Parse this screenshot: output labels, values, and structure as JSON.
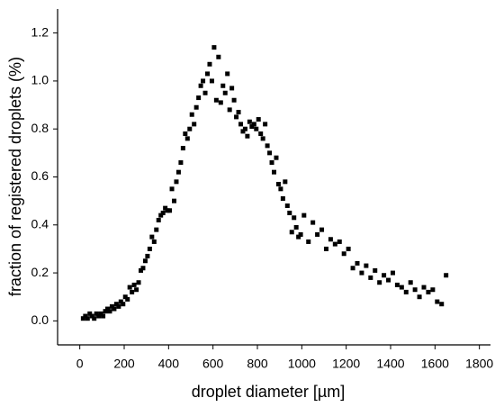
{
  "chart_data": {
    "type": "scatter",
    "xlabel": "droplet diameter [µm]",
    "ylabel": "fraction of registered droplets (%)",
    "color": "#000000",
    "x": [
      15,
      25,
      35,
      45,
      55,
      65,
      75,
      85,
      95,
      105,
      115,
      125,
      135,
      145,
      155,
      165,
      175,
      185,
      195,
      205,
      215,
      225,
      235,
      245,
      255,
      265,
      275,
      285,
      295,
      305,
      315,
      325,
      335,
      345,
      355,
      365,
      375,
      385,
      395,
      405,
      415,
      425,
      435,
      445,
      455,
      465,
      475,
      485,
      495,
      505,
      515,
      525,
      535,
      545,
      555,
      565,
      575,
      585,
      595,
      605,
      615,
      625,
      635,
      645,
      655,
      665,
      675,
      685,
      695,
      705,
      715,
      725,
      735,
      745,
      755,
      765,
      775,
      785,
      795,
      805,
      815,
      825,
      835,
      845,
      855,
      865,
      875,
      885,
      895,
      905,
      915,
      925,
      935,
      945,
      955,
      965,
      975,
      985,
      995,
      1010,
      1030,
      1050,
      1070,
      1090,
      1110,
      1130,
      1150,
      1170,
      1190,
      1210,
      1230,
      1250,
      1270,
      1290,
      1310,
      1330,
      1350,
      1370,
      1390,
      1410,
      1430,
      1450,
      1470,
      1490,
      1510,
      1530,
      1550,
      1570,
      1590,
      1610,
      1630,
      1650
    ],
    "values": [
      0.01,
      0.02,
      0.01,
      0.03,
      0.02,
      0.01,
      0.03,
      0.02,
      0.03,
      0.02,
      0.04,
      0.05,
      0.04,
      0.06,
      0.05,
      0.07,
      0.06,
      0.08,
      0.07,
      0.1,
      0.09,
      0.14,
      0.12,
      0.15,
      0.13,
      0.16,
      0.21,
      0.22,
      0.25,
      0.27,
      0.3,
      0.35,
      0.33,
      0.38,
      0.42,
      0.44,
      0.45,
      0.47,
      0.46,
      0.46,
      0.55,
      0.5,
      0.58,
      0.62,
      0.66,
      0.72,
      0.78,
      0.76,
      0.8,
      0.86,
      0.82,
      0.89,
      0.93,
      0.98,
      1.0,
      0.95,
      1.03,
      1.07,
      1.0,
      1.14,
      0.92,
      1.1,
      0.91,
      0.98,
      0.95,
      1.03,
      0.88,
      0.97,
      0.92,
      0.85,
      0.87,
      0.82,
      0.79,
      0.8,
      0.77,
      0.83,
      0.81,
      0.82,
      0.8,
      0.84,
      0.78,
      0.76,
      0.82,
      0.73,
      0.7,
      0.66,
      0.62,
      0.68,
      0.57,
      0.55,
      0.51,
      0.58,
      0.48,
      0.45,
      0.37,
      0.43,
      0.39,
      0.35,
      0.36,
      0.44,
      0.33,
      0.41,
      0.36,
      0.38,
      0.3,
      0.34,
      0.32,
      0.33,
      0.28,
      0.3,
      0.22,
      0.24,
      0.2,
      0.23,
      0.18,
      0.21,
      0.16,
      0.19,
      0.17,
      0.2,
      0.15,
      0.14,
      0.12,
      0.16,
      0.13,
      0.1,
      0.14,
      0.12,
      0.13,
      0.08,
      0.07,
      0.19
    ],
    "xlim": [
      -100,
      1850
    ],
    "xticks": [
      0,
      200,
      400,
      600,
      800,
      1000,
      1200,
      1400,
      1600,
      1800
    ],
    "ylim": [
      -0.1,
      1.3
    ],
    "yticks": [
      {
        "value": 0,
        "label": "0.0"
      },
      {
        "value": 0.2,
        "label": "0.2"
      },
      {
        "value": 0.4,
        "label": "0.4"
      },
      {
        "value": 0.6,
        "label": "0.6"
      },
      {
        "value": 0.8,
        "label": "0.8"
      },
      {
        "value": 1.0,
        "label": "1.0"
      },
      {
        "value": 1.2,
        "label": "1.2"
      }
    ]
  }
}
